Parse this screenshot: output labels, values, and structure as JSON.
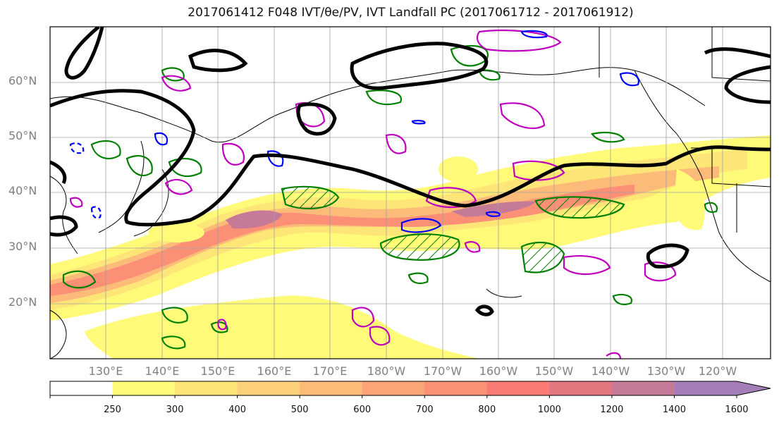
{
  "title": "2017061412 F048 IVT/θe/PV, IVT Landfall PC (2017061712 - 2017061912)",
  "latitude_labels": [
    "60°N",
    "50°N",
    "40°N",
    "30°N",
    "20°N"
  ],
  "longitude_labels": [
    "130°E",
    "140°E",
    "150°E",
    "160°E",
    "170°E",
    "180°W",
    "170°W",
    "160°W",
    "150°W",
    "140°W",
    "130°W",
    "120°W"
  ],
  "colorbar": {
    "levels": [
      "250",
      "300",
      "400",
      "500",
      "600",
      "700",
      "800",
      "1000",
      "1200",
      "1400",
      "1600"
    ],
    "colors": [
      "#ffffff",
      "#fffb78",
      "#fee578",
      "#fdd07a",
      "#fdbb7a",
      "#fca678",
      "#fb9076",
      "#fa7b74",
      "#e27780",
      "#c57b98",
      "#a47eb9"
    ]
  },
  "contour_colors": {
    "ivt_landfall_pc": "#000000",
    "theta_e": "#008000",
    "pv_positive": "#bf00bf",
    "pv_negative": "#0000ff"
  }
}
